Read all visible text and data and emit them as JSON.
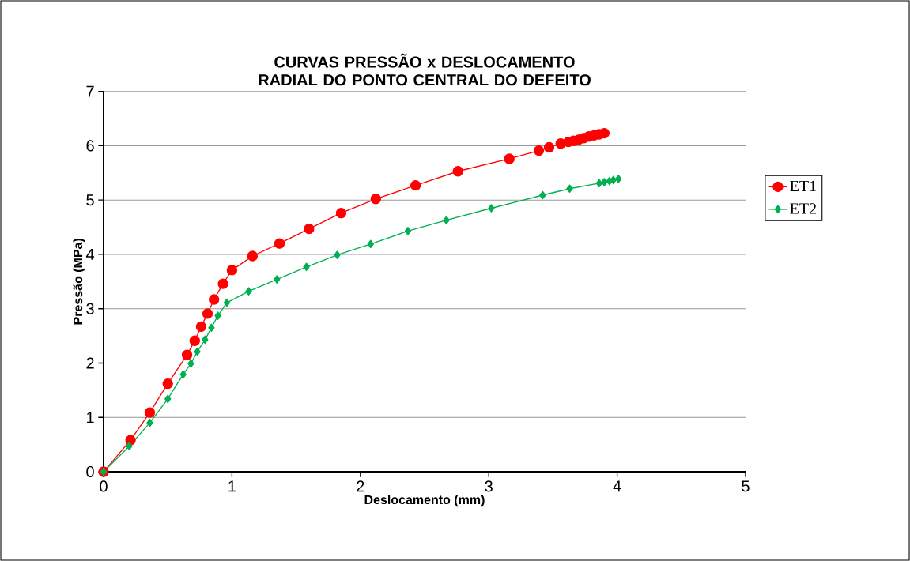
{
  "chart_data": {
    "type": "line",
    "title": "CURVAS PRESSÃO x DESLOCAMENTO RADIAL DO PONTO CENTRAL DO DEFEITO",
    "xlabel": "Deslocamento  (mm)",
    "ylabel": "Pressão  (MPa)",
    "xlim": [
      0,
      5
    ],
    "ylim": [
      0,
      7
    ],
    "xticks": [
      0,
      1,
      2,
      3,
      4,
      5
    ],
    "yticks": [
      0,
      1,
      2,
      3,
      4,
      5,
      6,
      7
    ],
    "grid": "y",
    "legend": "right",
    "line_style": "solid",
    "series": [
      {
        "name": "ET1",
        "color": "#ff0000",
        "marker": "circle",
        "x": [
          0,
          0.21,
          0.36,
          0.5,
          0.65,
          0.71,
          0.76,
          0.81,
          0.86,
          0.93,
          1.0,
          1.16,
          1.37,
          1.6,
          1.85,
          2.12,
          2.43,
          2.76,
          3.16,
          3.39,
          3.47,
          3.56,
          3.62,
          3.66,
          3.7,
          3.74,
          3.78,
          3.82,
          3.86,
          3.9
        ],
        "values": [
          0,
          0.58,
          1.09,
          1.62,
          2.15,
          2.41,
          2.67,
          2.91,
          3.17,
          3.46,
          3.71,
          3.97,
          4.2,
          4.47,
          4.76,
          5.02,
          5.27,
          5.53,
          5.76,
          5.91,
          5.97,
          6.04,
          6.07,
          6.09,
          6.11,
          6.14,
          6.17,
          6.19,
          6.21,
          6.23
        ]
      },
      {
        "name": "ET2",
        "color": "#00b050",
        "marker": "diamond",
        "x": [
          0,
          0.2,
          0.36,
          0.5,
          0.62,
          0.68,
          0.73,
          0.79,
          0.84,
          0.89,
          0.96,
          1.13,
          1.35,
          1.58,
          1.82,
          2.08,
          2.37,
          2.67,
          3.02,
          3.42,
          3.63,
          3.86,
          3.9,
          3.94,
          3.97,
          4.01
        ],
        "values": [
          0,
          0.47,
          0.9,
          1.34,
          1.79,
          1.99,
          2.21,
          2.43,
          2.65,
          2.87,
          3.11,
          3.32,
          3.54,
          3.77,
          3.99,
          4.19,
          4.43,
          4.63,
          4.85,
          5.09,
          5.21,
          5.31,
          5.33,
          5.35,
          5.37,
          5.39
        ]
      }
    ]
  }
}
